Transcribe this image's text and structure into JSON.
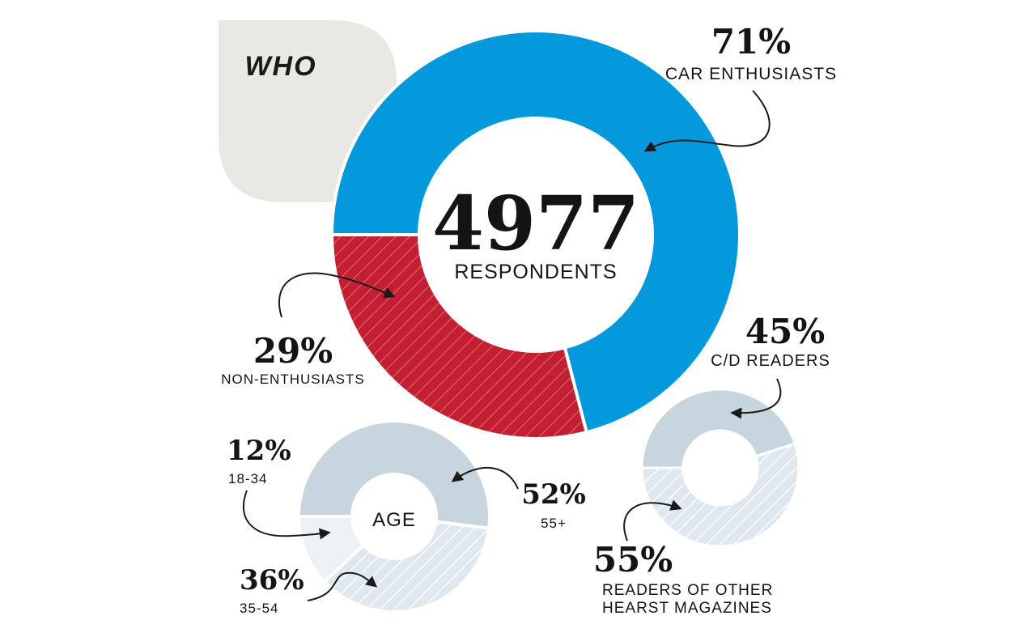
{
  "heading": "WHO",
  "chart_data": [
    {
      "type": "pie",
      "title": "",
      "center_number": "4977",
      "center_label": "RESPONDENTS",
      "categories": [
        "CAR ENTHUSIASTS",
        "NON-ENTHUSIASTS"
      ],
      "values": [
        71,
        29
      ],
      "value_labels": [
        "71%",
        "29%"
      ],
      "colors": [
        "#0399dc",
        "#c41e35"
      ]
    },
    {
      "type": "pie",
      "title": "",
      "center_label": "",
      "categories": [
        "C/D READERS",
        "READERS OF OTHER HEARST MAGAZINES"
      ],
      "values": [
        45,
        55
      ],
      "value_labels": [
        "45%",
        "55%"
      ],
      "colors": [
        "#c7d5de",
        "#dfe8ee"
      ]
    },
    {
      "type": "pie",
      "title": "",
      "center_label": "AGE",
      "categories": [
        "18-34",
        "35-54",
        "55+"
      ],
      "values": [
        12,
        36,
        52
      ],
      "value_labels": [
        "12%",
        "36%",
        "52%"
      ],
      "colors": [
        "#ecf1f4",
        "#dfe8ee",
        "#c7d5de"
      ]
    }
  ],
  "labels": {
    "car_pct": "71%",
    "car_text": "CAR ENTHUSIASTS",
    "non_pct": "29%",
    "non_text": "NON-ENTHUSIASTS",
    "cd_pct": "45%",
    "cd_text": "C/D READERS",
    "hearst_pct": "55%",
    "hearst_text_1": "READERS OF OTHER",
    "hearst_text_2": "HEARST MAGAZINES",
    "age_12_pct": "12%",
    "age_12_text": "18-34",
    "age_36_pct": "36%",
    "age_36_text": "35-54",
    "age_52_pct": "52%",
    "age_52_text": "55+"
  }
}
